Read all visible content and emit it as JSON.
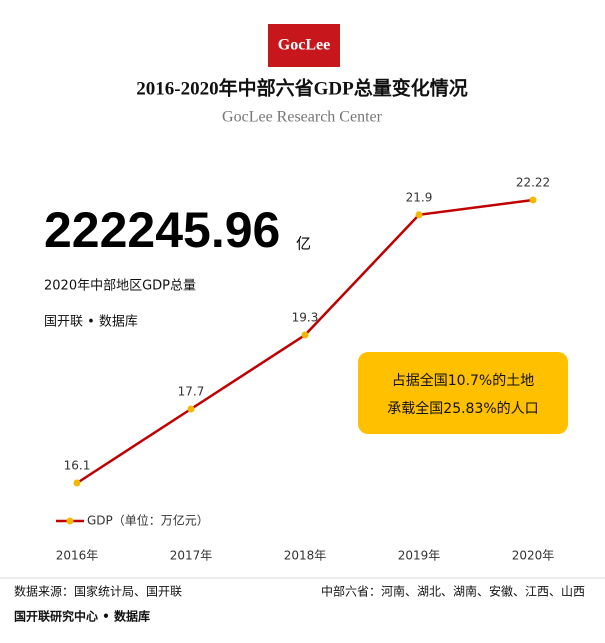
{
  "chart_data": {
    "type": "line",
    "logo": "GocLee",
    "title": "2016-2020年中部六省GDP总量变化情况",
    "subtitle": "GocLee Research Center",
    "headline_value": 222245.96,
    "headline_unit": "亿",
    "headline_caption": "2020年中部地区GDP总量",
    "headline_source": "国开联 • 数据库",
    "annotation": [
      "占据全国10.7%的土地",
      "承载全国25.83%的人口"
    ],
    "categories": [
      "2016年",
      "2017年",
      "2018年",
      "2019年",
      "2020年"
    ],
    "series": [
      {
        "name": "GDP（单位：万亿元）",
        "color": "#c00000",
        "marker_color": "#f5b800",
        "values": [
          16.1,
          17.7,
          19.3,
          21.9,
          22.22
        ]
      }
    ],
    "footer_left": "数据来源：国家统计局、国开联",
    "footer_right": "中部六省：河南、湖北、湖南、安徽、江西、山西",
    "footer_bottom": "国开联研究中心 • 数据库"
  }
}
